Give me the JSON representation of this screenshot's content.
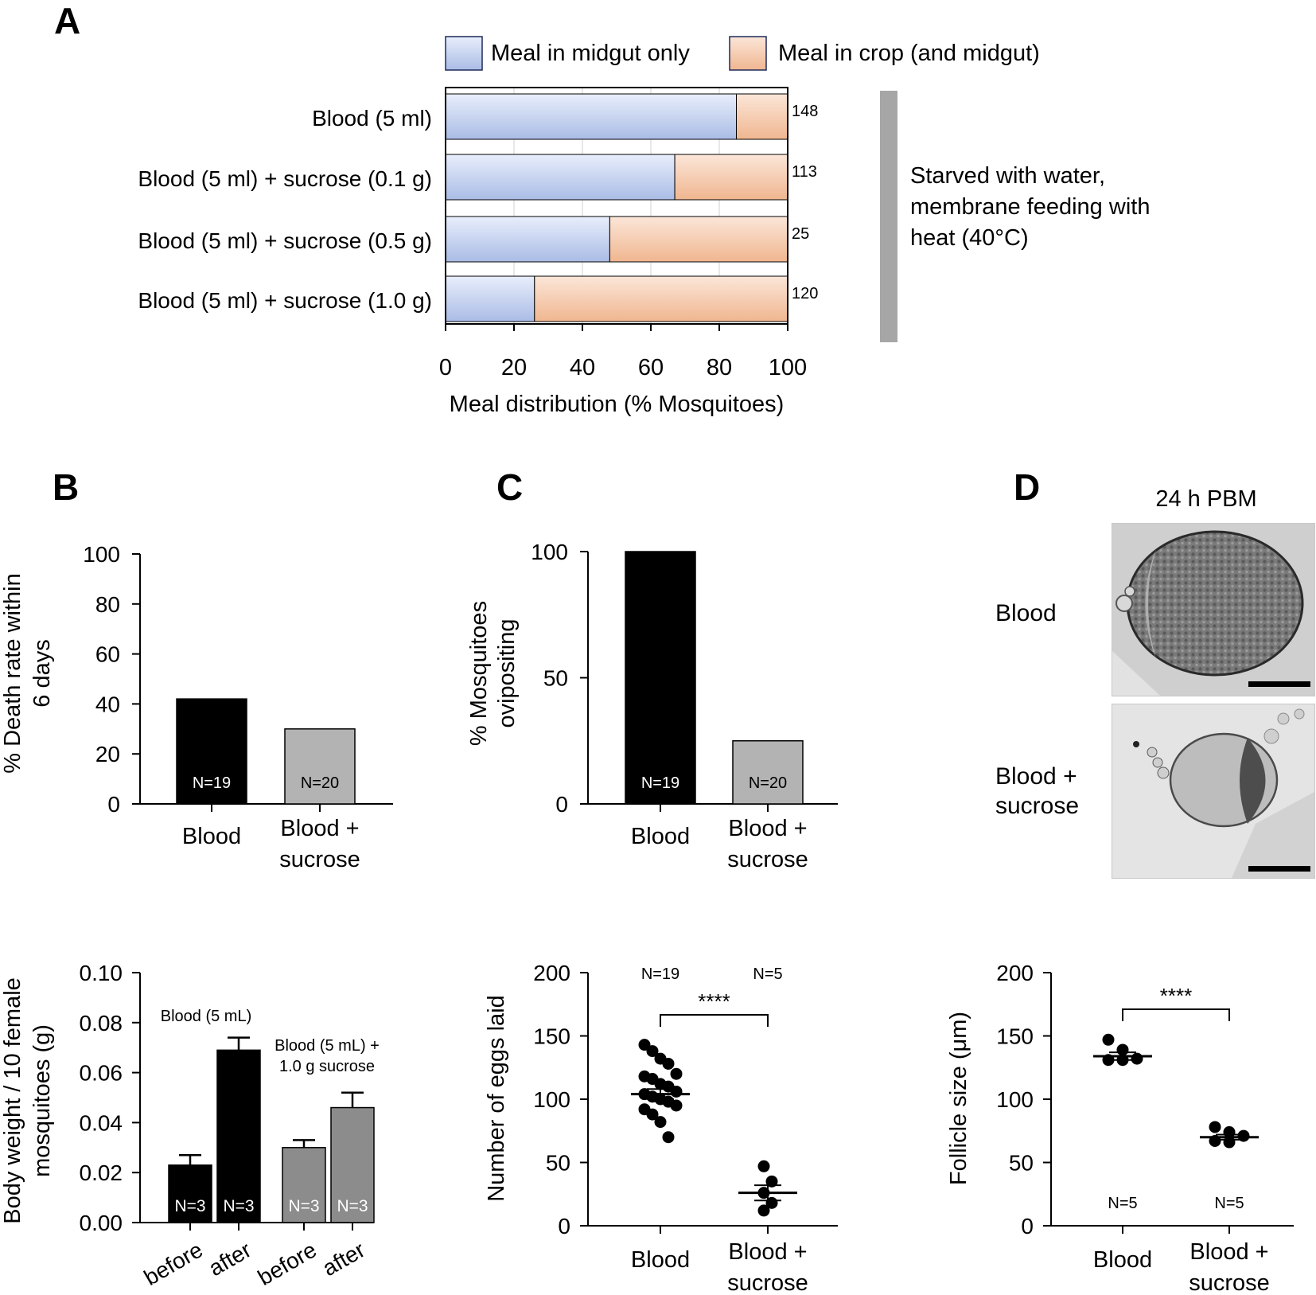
{
  "chart_data": [
    {
      "panel": "A",
      "type": "bar",
      "orientation": "horizontal",
      "stacked": true,
      "categories": [
        "Blood (5 ml)",
        "Blood (5 ml) + sucrose (0.1 g)",
        "Blood (5 ml) + sucrose (0.5 g)",
        "Blood (5 ml) + sucrose (1.0 g)"
      ],
      "series": [
        {
          "name": "Meal in midgut only",
          "values": [
            85,
            67,
            48,
            26
          ]
        },
        {
          "name": "Meal in crop (and midgut)",
          "values": [
            15,
            33,
            52,
            74
          ]
        }
      ],
      "n_labels": [
        "148",
        "113",
        "25",
        "120"
      ],
      "xlabel": "Meal distribution (% Mosquitoes)",
      "xlim": [
        0,
        100
      ],
      "xticks": [
        "0",
        "20",
        "40",
        "60",
        "80",
        "100"
      ],
      "side_note": [
        "Starved with water,",
        "membrane feeding with",
        "heat (40°C)"
      ]
    },
    {
      "panel": "B",
      "type": "bar",
      "categories": [
        "Blood",
        "Blood + sucrose"
      ],
      "category_lines": [
        [
          "Blood"
        ],
        [
          "Blood +",
          "sucrose"
        ]
      ],
      "values": [
        42,
        30
      ],
      "n_labels": [
        "N=19",
        "N=20"
      ],
      "ylabel_lines": [
        "% Death rate within",
        "6 days"
      ],
      "ylim": [
        0,
        100
      ],
      "yticks": [
        "0",
        "20",
        "40",
        "60",
        "80",
        "100"
      ]
    },
    {
      "panel": "C",
      "type": "bar",
      "categories": [
        "Blood",
        "Blood + sucrose"
      ],
      "category_lines": [
        [
          "Blood"
        ],
        [
          "Blood +",
          "sucrose"
        ]
      ],
      "values": [
        100,
        25
      ],
      "n_labels": [
        "N=19",
        "N=20"
      ],
      "ylabel_lines": [
        "% Mosquitoes",
        "ovipositing"
      ],
      "ylim": [
        0,
        100
      ],
      "yticks": [
        "0",
        "50",
        "100"
      ]
    },
    {
      "panel": "B-lower",
      "type": "bar",
      "categories": [
        "before",
        "after",
        "before",
        "after"
      ],
      "values": [
        0.023,
        0.069,
        0.03,
        0.046
      ],
      "errors": [
        0.004,
        0.005,
        0.003,
        0.006
      ],
      "n_labels": [
        "N=3",
        "N=3",
        "N=3",
        "N=3"
      ],
      "group_labels": [
        [
          "Blood (5 mL)"
        ],
        [
          "Blood (5 mL) +",
          "1.0 g sucrose"
        ]
      ],
      "ylabel_lines": [
        "Body weight / 10 female",
        "mosquitoes (g)"
      ],
      "ylim": [
        0,
        0.1
      ],
      "yticks": [
        "0.00",
        "0.02",
        "0.04",
        "0.06",
        "0.08",
        "0.10"
      ]
    },
    {
      "panel": "C-lower",
      "type": "scatter",
      "categories": [
        "Blood",
        "Blood + sucrose"
      ],
      "category_lines": [
        [
          "Blood"
        ],
        [
          "Blood +",
          "sucrose"
        ]
      ],
      "points": [
        [
          143,
          138,
          132,
          128,
          120,
          118,
          116,
          112,
          110,
          106,
          104,
          102,
          100,
          98,
          95,
          92,
          88,
          82,
          70
        ],
        [
          47,
          35,
          26,
          18,
          12
        ]
      ],
      "means": [
        104,
        26
      ],
      "sems": [
        4,
        6
      ],
      "n_labels": [
        "N=19",
        "N=5"
      ],
      "significance": "****",
      "ylabel": "Number of eggs laid",
      "ylim": [
        0,
        200
      ],
      "yticks": [
        "0",
        "50",
        "100",
        "150",
        "200"
      ]
    },
    {
      "panel": "D-lower",
      "type": "scatter",
      "categories": [
        "Blood",
        "Blood + sucrose"
      ],
      "category_lines": [
        [
          "Blood"
        ],
        [
          "Blood +",
          "sucrose"
        ]
      ],
      "points": [
        [
          147,
          139,
          132,
          131,
          131
        ],
        [
          78,
          74,
          71,
          67,
          66
        ]
      ],
      "means": [
        134,
        70
      ],
      "sems": [
        3,
        2
      ],
      "n_labels": [
        "N=5",
        "N=5"
      ],
      "significance": "****",
      "ylabel": "Follicle size (μm)",
      "ylim": [
        0,
        200
      ],
      "yticks": [
        "0",
        "50",
        "100",
        "150",
        "200"
      ]
    }
  ],
  "panel_labels": {
    "a": "A",
    "b": "B",
    "c": "C",
    "d": "D"
  },
  "panel_d": {
    "title": "24 h PBM",
    "rows": [
      [
        "Blood"
      ],
      [
        "Blood +",
        "sucrose"
      ]
    ]
  },
  "colors": {
    "midgut_light": "#e8eefb",
    "midgut_dark": "#aabce6",
    "crop_light": "#fbe6d8",
    "crop_dark": "#f0b690",
    "black_bar": "#000000",
    "gray_bar_B": "#b3b3b3",
    "gray_bar_lower": "#8c8c8c",
    "side_bar": "#a6a6a6",
    "grid": "#d0d0d0"
  }
}
